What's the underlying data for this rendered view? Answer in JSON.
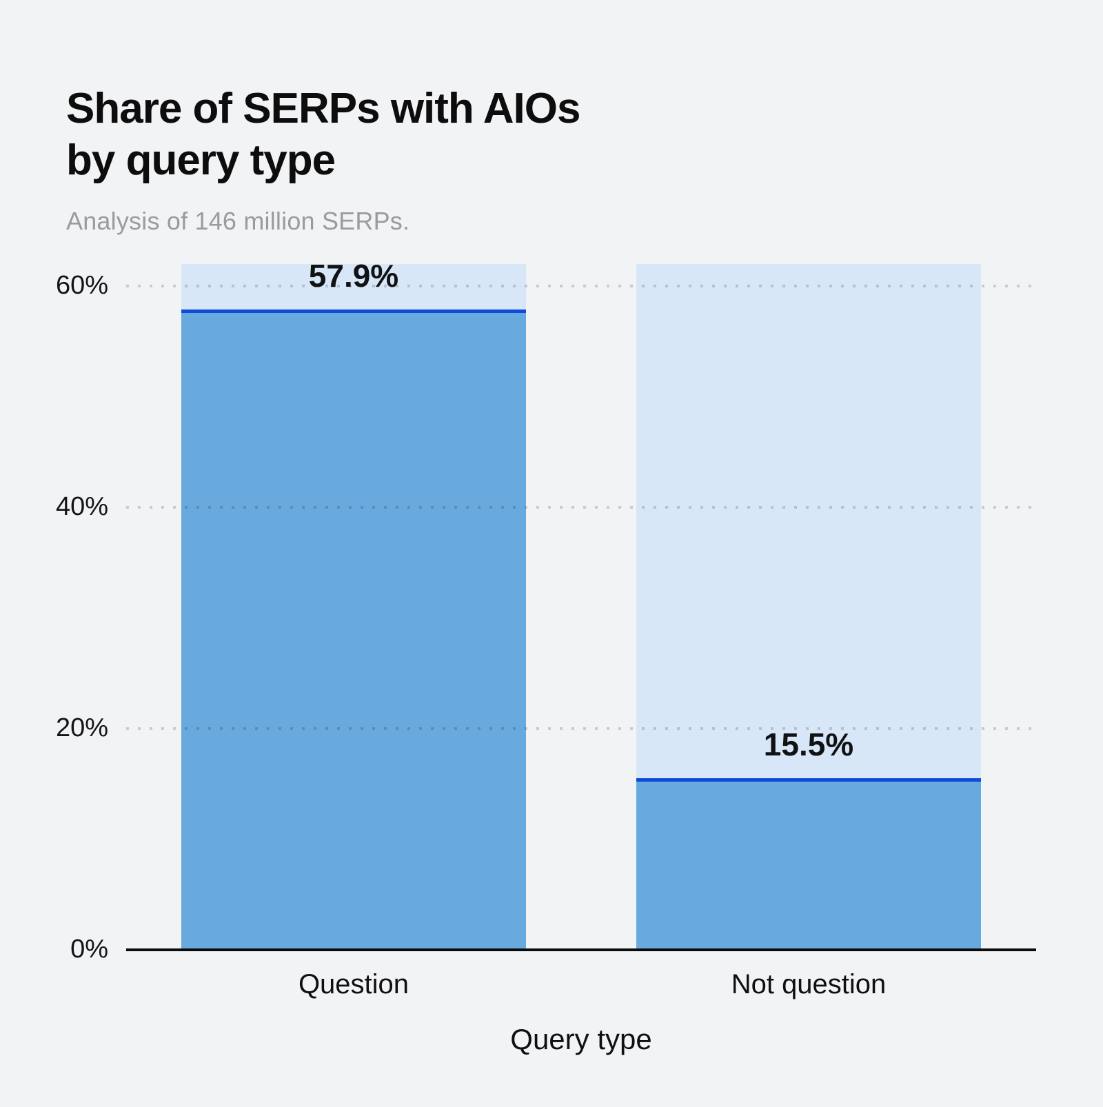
{
  "chart_data": {
    "type": "bar",
    "title": "Share of SERPs with AIOs\nby query type",
    "subtitle": "Analysis of 146 million SERPs.",
    "xlabel": "Query type",
    "ylabel": "",
    "categories": [
      "Question",
      "Not question"
    ],
    "values": [
      57.9,
      15.5
    ],
    "value_labels": [
      "57.9%",
      "15.5%"
    ],
    "ylim": [
      0,
      62
    ],
    "yticks": [
      {
        "value": 0,
        "label": "0%"
      },
      {
        "value": 20,
        "label": "20%"
      },
      {
        "value": 40,
        "label": "40%"
      },
      {
        "value": 60,
        "label": "60%"
      }
    ],
    "grid": "horizontal-dotted",
    "legend": "none",
    "colors": {
      "background": "#f2f3f5",
      "bar_track": "#d8e7f8",
      "bar_fill": "#68a9de",
      "bar_top_line": "#0d4bd8",
      "axis_line": "#0b0b0c",
      "gridline": "rgba(20,20,22,0.18)",
      "title_text": "#0d0d0e",
      "subtitle_text": "#999ba0",
      "label_text": "#111214"
    }
  }
}
